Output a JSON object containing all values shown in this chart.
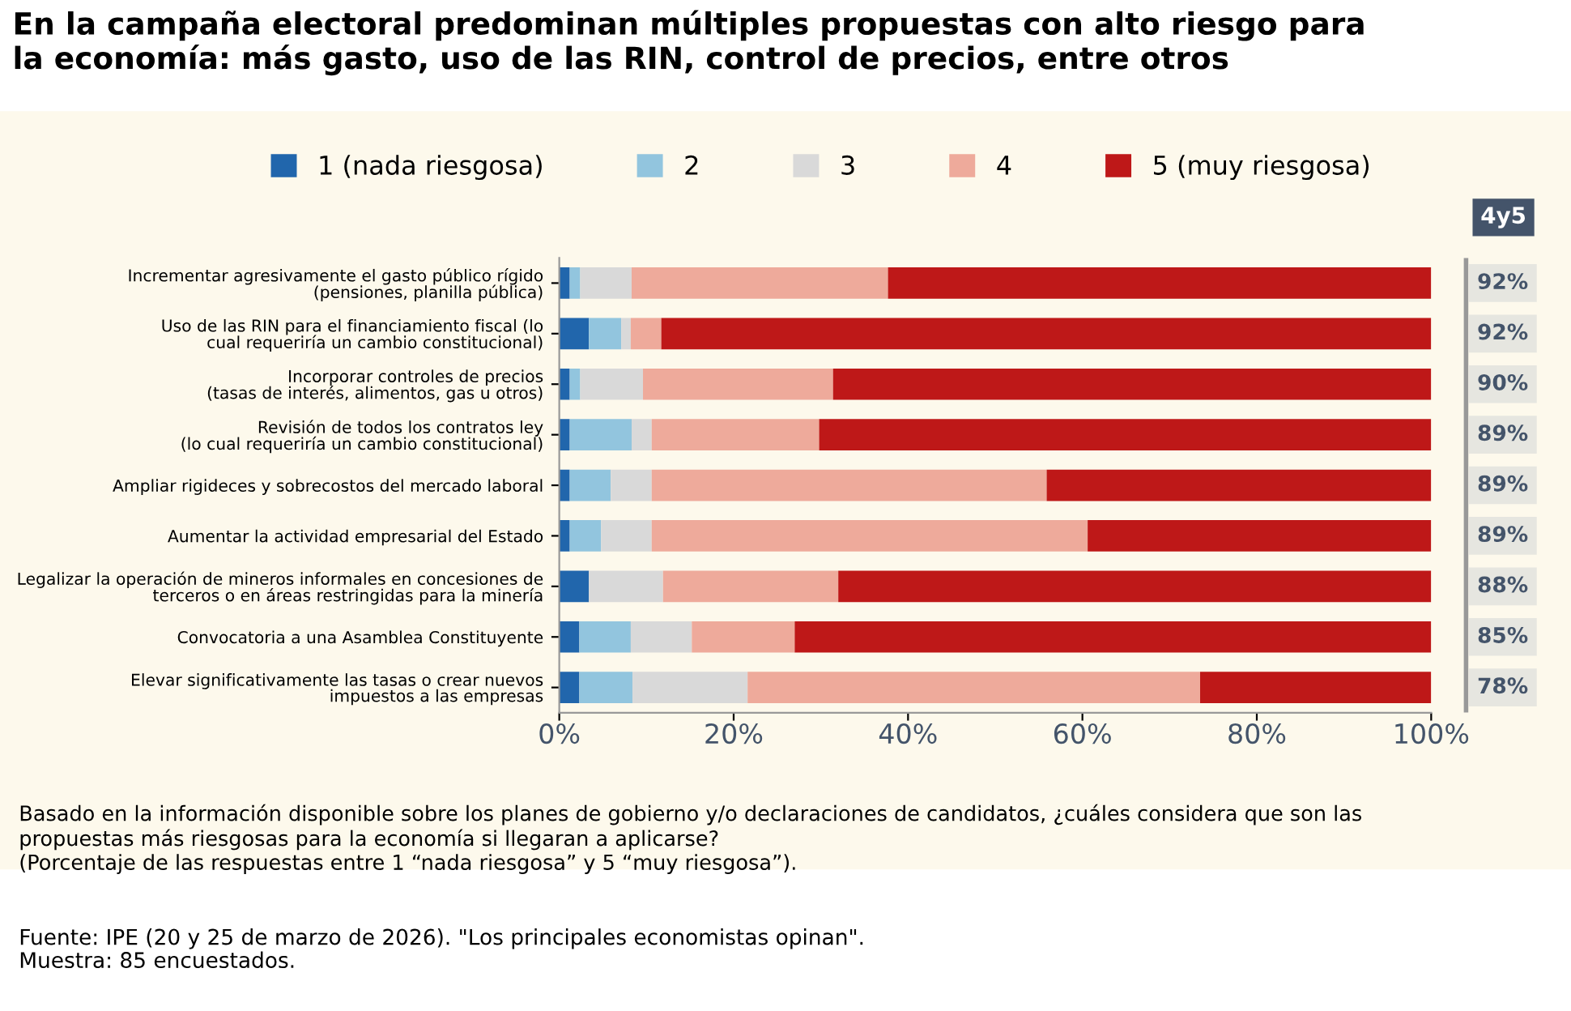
{
  "chart_data": {
    "type": "bar",
    "orientation": "horizontal",
    "stacked": true,
    "title": "En la campaña electoral predominan múltiples propuestas con alto riesgo para\nla economía: más gasto, uso de las RIN, control de precios, entre otros",
    "categories": [
      "Incrementar agresivamente el gasto público rígido\n(pensiones, planilla pública)",
      "Uso de las RIN para el financiamiento fiscal (lo\ncual requeriría un cambio constitucional)",
      "Incorporar controles de precios\n(tasas de interés, alimentos, gas u otros)",
      "Revisión de todos los contratos ley\n(lo cual requeriría un cambio constitucional)",
      "Ampliar rigideces y sobrecostos del mercado laboral",
      "Aumentar la actividad empresarial del Estado",
      "Legalizar la operación de mineros informales en concesiones de\nterceros o en áreas restringidas para la minería",
      "Convocatoria a una Asamblea Constituyente",
      "Elevar significativamente las tasas o crear nuevos\nimpuestos a las empresas"
    ],
    "series": [
      {
        "name": "1 (nada riesgosa)",
        "color": "#2166ac",
        "values": [
          1.2,
          3.4,
          1.2,
          1.2,
          1.2,
          1.2,
          3.4,
          2.3,
          2.3
        ]
      },
      {
        "name": "2",
        "color": "#92c5de",
        "values": [
          1.2,
          3.7,
          1.2,
          7.1,
          4.7,
          3.6,
          0,
          5.9,
          6.1
        ]
      },
      {
        "name": "3",
        "color": "#d9d9d9",
        "values": [
          5.9,
          1.1,
          7.2,
          2.3,
          4.7,
          5.8,
          8.5,
          7.0,
          13.2
        ]
      },
      {
        "name": "4",
        "color": "#eeaa9b",
        "values": [
          29.4,
          3.5,
          21.8,
          19.2,
          45.3,
          50.0,
          20.1,
          11.8,
          51.9
        ]
      },
      {
        "name": "5 (muy riesgosa)",
        "color": "#be1818",
        "values": [
          62.3,
          88.3,
          68.6,
          70.2,
          44.1,
          39.4,
          68.0,
          73.0,
          26.5
        ]
      }
    ],
    "xlim": [
      0,
      100
    ],
    "xticks": [
      {
        "value": 0,
        "label": "0%"
      },
      {
        "value": 20,
        "label": "20%"
      },
      {
        "value": 40,
        "label": "40%"
      },
      {
        "value": 60,
        "label": "60%"
      },
      {
        "value": 80,
        "label": "80%"
      },
      {
        "value": 100,
        "label": "100%"
      }
    ],
    "grid": false,
    "legend": "top",
    "annotations": [
      "4y5",
      "Basado en la información disponible sobre los planes de gobierno y/o declaraciones de candidatos, ¿cuáles considera que son las\npropuestas más riesgosas para la economía si llegaran a aplicarse?\n(Porcentaje de las respuestas entre 1 “nada riesgosa” y 5 “muy riesgosa”).",
      "Fuente: IPE (20 y 25 de marzo de 2026). \"Los principales economistas opinan\".\nMuestra: 85 encuestados.",
      "92%",
      "92%",
      "90%",
      "89%",
      "89%",
      "89%",
      "88%",
      "85%",
      "78%"
    ]
  }
}
